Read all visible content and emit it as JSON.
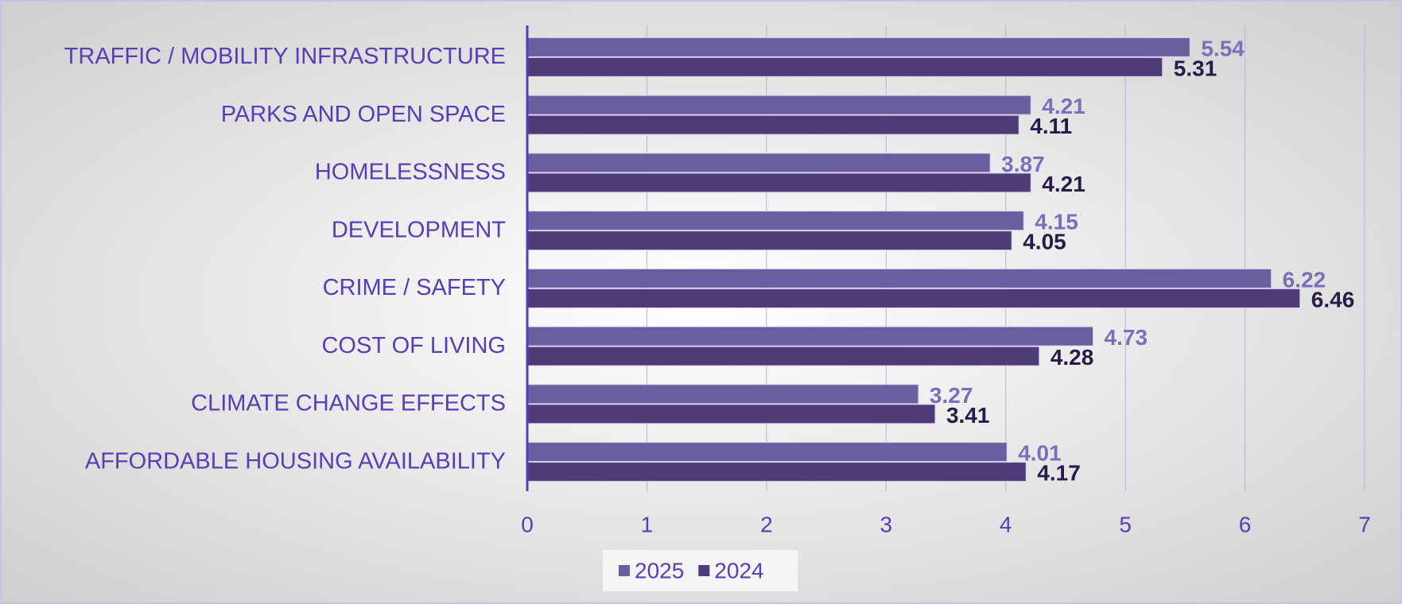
{
  "chart_data": {
    "type": "bar",
    "orientation": "horizontal",
    "categories": [
      "TRAFFIC / MOBILITY INFRASTRUCTURE",
      "PARKS AND OPEN SPACE",
      "HOMELESSNESS",
      "DEVELOPMENT",
      "CRIME / SAFETY",
      "COST OF LIVING",
      "CLIMATE CHANGE EFFECTS",
      "AFFORDABLE HOUSING AVAILABILITY"
    ],
    "series": [
      {
        "name": "2025",
        "color": "#6a5f9e",
        "values": [
          5.54,
          4.21,
          3.87,
          4.15,
          6.22,
          4.73,
          3.27,
          4.01
        ]
      },
      {
        "name": "2024",
        "color": "#4e3b78",
        "values": [
          5.31,
          4.11,
          4.21,
          4.05,
          6.46,
          4.28,
          3.41,
          4.17
        ]
      }
    ],
    "xlim": [
      0,
      7
    ],
    "xticks": [
      0,
      1,
      2,
      3,
      4,
      5,
      6,
      7
    ],
    "grid": true,
    "legend": "bottom"
  }
}
